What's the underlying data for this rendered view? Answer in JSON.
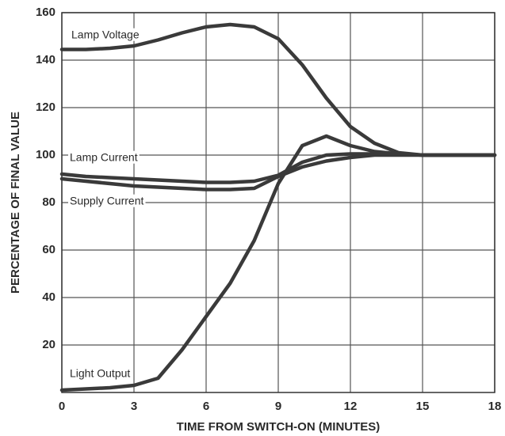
{
  "chart_data": {
    "type": "line",
    "xlabel": "TIME FROM SWITCH-ON (MINUTES)",
    "ylabel": "PERCENTAGE OF FINAL VALUE",
    "x": [
      0,
      1,
      2,
      3,
      4,
      5,
      6,
      7,
      8,
      9,
      10,
      11,
      12,
      13,
      14,
      15,
      16,
      17,
      18
    ],
    "series": [
      {
        "name": "Lamp Voltage",
        "color": "#3a3a3a",
        "values": [
          144.5,
          144.5,
          145,
          146,
          148.5,
          151.5,
          154,
          155,
          154,
          149,
          138,
          124,
          112,
          105,
          101,
          100,
          100,
          100,
          100
        ]
      },
      {
        "name": "Lamp Current",
        "color": "#3a3a3a",
        "values": [
          92,
          91,
          90.5,
          90,
          89.5,
          89,
          88.5,
          88.5,
          89,
          91.5,
          97,
          100,
          100.5,
          100.5,
          100.5,
          100,
          100,
          100,
          100
        ]
      },
      {
        "name": "Supply Current",
        "color": "#3a3a3a",
        "values": [
          90,
          89,
          88,
          87,
          86.5,
          86,
          85.5,
          85.5,
          86,
          91,
          95,
          97.5,
          99,
          100,
          100,
          100,
          100,
          100,
          100
        ]
      },
      {
        "name": "Light Output",
        "color": "#3a3a3a",
        "values": [
          1,
          1.5,
          2,
          3,
          6,
          18,
          32,
          46,
          64,
          88,
          104,
          108,
          104,
          101.5,
          100.5,
          100,
          100,
          100,
          100
        ]
      }
    ],
    "xlim": [
      0,
      18
    ],
    "xticks": [
      0,
      3,
      6,
      9,
      12,
      15,
      18
    ],
    "ylim": [
      0,
      160
    ],
    "yticks": [
      20,
      40,
      60,
      80,
      100,
      120,
      140,
      160
    ],
    "grid": true
  }
}
